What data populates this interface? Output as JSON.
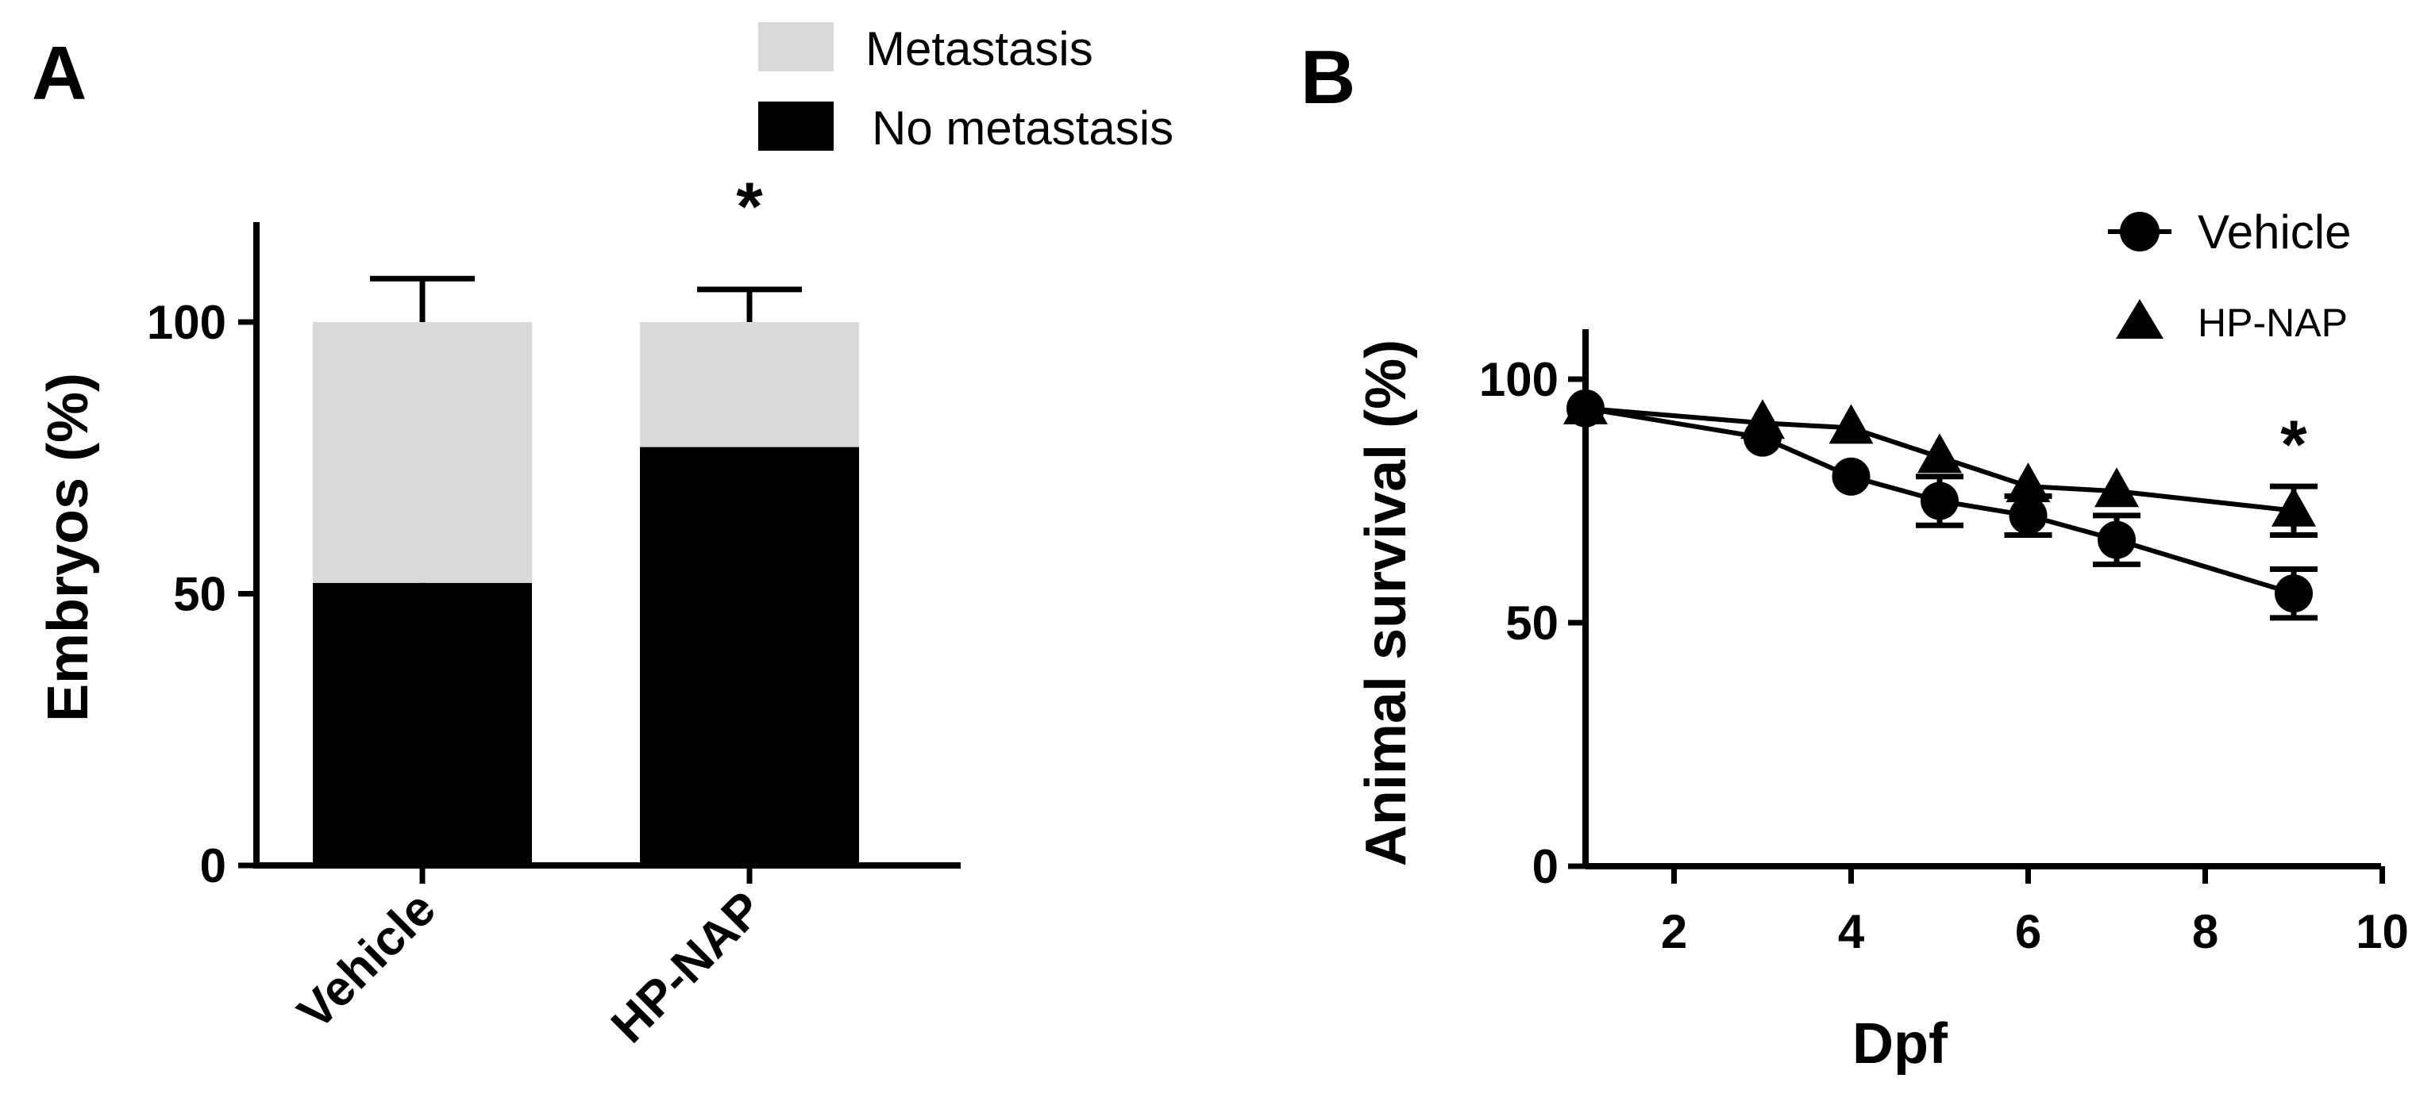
{
  "chart_data": [
    {
      "panel": "A",
      "type": "bar",
      "stacked": true,
      "categories": [
        "Vehicle",
        "HP-NAP"
      ],
      "series": [
        {
          "name": "No metastasis",
          "color": "#000000",
          "values": [
            52,
            77
          ],
          "errors": [
            8,
            7
          ]
        },
        {
          "name": "Metastasis",
          "color": "#d9d9d9",
          "values": [
            48,
            23
          ],
          "errors": [
            8,
            6
          ]
        }
      ],
      "ylabel": "Embryos (%)",
      "xlabel": "",
      "ylim": [
        0,
        120
      ],
      "yticks": [
        0,
        50,
        100
      ],
      "legend": [
        "Metastasis",
        "No metastasis"
      ],
      "annotations": [
        {
          "text": "*",
          "category": "HP-NAP"
        }
      ]
    },
    {
      "panel": "B",
      "type": "line",
      "x": [
        1,
        3,
        4,
        5,
        6,
        7,
        9
      ],
      "series": [
        {
          "name": "Vehicle",
          "marker": "circle",
          "values": [
            94,
            88,
            80,
            75,
            72,
            67,
            56
          ],
          "errors": [
            0,
            0,
            0,
            5,
            4,
            5,
            5
          ]
        },
        {
          "name": "HP-NAP",
          "marker": "triangle",
          "values": [
            94,
            91,
            90,
            84,
            78,
            77,
            73
          ],
          "errors": [
            0,
            0,
            0,
            0,
            0,
            0,
            5
          ]
        }
      ],
      "xlabel": "Dpf",
      "ylabel": "Animal survival (%)",
      "xlim": [
        1,
        10
      ],
      "ylim": [
        0,
        110
      ],
      "xticks": [
        2,
        4,
        6,
        8,
        10
      ],
      "yticks": [
        0,
        50,
        100
      ],
      "legend": [
        "Vehicle",
        "HP-NAP"
      ],
      "annotations": [
        {
          "text": "*",
          "x": 9
        }
      ]
    }
  ]
}
